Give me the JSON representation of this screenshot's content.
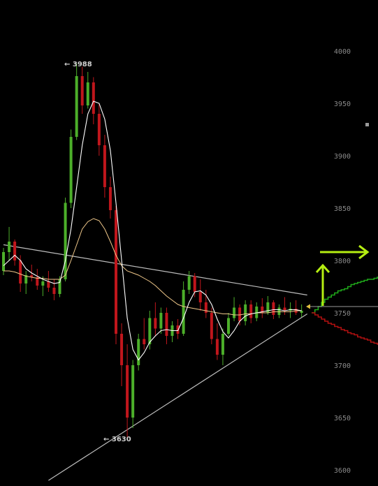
{
  "chart_data": {
    "type": "candlestick",
    "ylim": [
      3590,
      4010
    ],
    "y_ticks": [
      4000,
      3950,
      3900,
      3850,
      3800,
      3750,
      3700,
      3650,
      3600
    ],
    "grid": false,
    "legend": "none",
    "colors": {
      "up": "#4caf2a",
      "down": "#c0161c",
      "ma_fast": "#ffffff",
      "ma_slow": "#f0c88a",
      "trendline": "#bdbdbd",
      "bid_depth": "#1fa81a",
      "ask_depth": "#b01010",
      "arrow": "#b5ee12",
      "tick_text": "#8a8a8a"
    },
    "annotations": [
      {
        "label": "← 3988",
        "price": 3988
      },
      {
        "label": "← 3630",
        "price": 3630
      }
    ],
    "last_price": 3752,
    "candles": [
      [
        3790,
        3812,
        3786,
        3808
      ],
      [
        3808,
        3832,
        3800,
        3818
      ],
      [
        3818,
        3820,
        3795,
        3800
      ],
      [
        3800,
        3805,
        3770,
        3778
      ],
      [
        3778,
        3790,
        3768,
        3786
      ],
      [
        3786,
        3796,
        3780,
        3784
      ],
      [
        3784,
        3792,
        3772,
        3776
      ],
      [
        3776,
        3785,
        3766,
        3780
      ],
      [
        3780,
        3790,
        3770,
        3774
      ],
      [
        3774,
        3782,
        3762,
        3768
      ],
      [
        3768,
        3785,
        3765,
        3782
      ],
      [
        3782,
        3860,
        3780,
        3855
      ],
      [
        3855,
        3925,
        3850,
        3918
      ],
      [
        3918,
        3988,
        3915,
        3976
      ],
      [
        3976,
        3985,
        3940,
        3948
      ],
      [
        3948,
        3980,
        3945,
        3970
      ],
      [
        3970,
        3975,
        3930,
        3940
      ],
      [
        3940,
        3950,
        3900,
        3910
      ],
      [
        3910,
        3920,
        3860,
        3870
      ],
      [
        3870,
        3880,
        3840,
        3848
      ],
      [
        3848,
        3852,
        3720,
        3730
      ],
      [
        3730,
        3740,
        3680,
        3700
      ],
      [
        3700,
        3720,
        3630,
        3650
      ],
      [
        3650,
        3705,
        3640,
        3700
      ],
      [
        3700,
        3730,
        3695,
        3725
      ],
      [
        3725,
        3745,
        3715,
        3720
      ],
      [
        3720,
        3752,
        3715,
        3745
      ],
      [
        3745,
        3760,
        3728,
        3735
      ],
      [
        3735,
        3755,
        3730,
        3750
      ],
      [
        3750,
        3755,
        3720,
        3728
      ],
      [
        3728,
        3742,
        3722,
        3738
      ],
      [
        3738,
        3744,
        3725,
        3730
      ],
      [
        3730,
        3780,
        3728,
        3772
      ],
      [
        3772,
        3790,
        3768,
        3785
      ],
      [
        3785,
        3788,
        3765,
        3770
      ],
      [
        3770,
        3782,
        3752,
        3760
      ],
      [
        3760,
        3772,
        3745,
        3750
      ],
      [
        3750,
        3755,
        3720,
        3725
      ],
      [
        3725,
        3740,
        3705,
        3710
      ],
      [
        3710,
        3735,
        3700,
        3730
      ],
      [
        3730,
        3750,
        3728,
        3745
      ],
      [
        3745,
        3765,
        3742,
        3755
      ],
      [
        3755,
        3758,
        3738,
        3742
      ],
      [
        3742,
        3762,
        3738,
        3758
      ],
      [
        3758,
        3762,
        3740,
        3745
      ],
      [
        3745,
        3760,
        3742,
        3756
      ],
      [
        3756,
        3764,
        3745,
        3750
      ],
      [
        3750,
        3766,
        3748,
        3760
      ],
      [
        3760,
        3762,
        3744,
        3748
      ],
      [
        3748,
        3758,
        3745,
        3755
      ],
      [
        3755,
        3765,
        3748,
        3752
      ],
      [
        3752,
        3760,
        3745,
        3754
      ],
      [
        3754,
        3762,
        3748,
        3750
      ],
      [
        3750,
        3758,
        3746,
        3752
      ]
    ],
    "ma_fast": [
      3795,
      3800,
      3805,
      3800,
      3792,
      3788,
      3785,
      3782,
      3780,
      3778,
      3779,
      3800,
      3830,
      3870,
      3910,
      3940,
      3952,
      3950,
      3935,
      3905,
      3855,
      3800,
      3745,
      3715,
      3705,
      3712,
      3722,
      3728,
      3733,
      3734,
      3733,
      3733,
      3745,
      3760,
      3770,
      3771,
      3767,
      3758,
      3744,
      3732,
      3726,
      3733,
      3742,
      3747,
      3749,
      3750,
      3751,
      3752,
      3753,
      3753,
      3752,
      3753,
      3753,
      3752
    ],
    "ma_slow": [
      3790,
      3790,
      3789,
      3787,
      3785,
      3784,
      3783,
      3783,
      3782,
      3782,
      3782,
      3786,
      3800,
      3815,
      3830,
      3837,
      3840,
      3838,
      3830,
      3818,
      3805,
      3795,
      3790,
      3788,
      3786,
      3783,
      3780,
      3776,
      3771,
      3766,
      3762,
      3758,
      3756,
      3755,
      3754,
      3753,
      3752,
      3751,
      3750,
      3749,
      3749,
      3748,
      3748,
      3749,
      3749,
      3750,
      3750,
      3750,
      3751,
      3751,
      3751,
      3751,
      3752,
      3752
    ],
    "trendlines": [
      {
        "from": [
          0,
          3815
        ],
        "to": [
          54,
          3767
        ]
      },
      {
        "from": [
          8,
          3590
        ],
        "to": [
          54,
          3749
        ]
      }
    ],
    "depth": {
      "bid": [
        3750,
        3753,
        3756,
        3760,
        3763,
        3765,
        3767,
        3769,
        3771,
        3772,
        3773,
        3775,
        3777,
        3778,
        3779,
        3780,
        3781,
        3782,
        3782,
        3783,
        3784
      ],
      "ask": [
        3750,
        3748,
        3746,
        3744,
        3742,
        3740,
        3739,
        3737,
        3736,
        3734,
        3733,
        3731,
        3730,
        3729,
        3727,
        3726,
        3725,
        3724,
        3722,
        3721,
        3720
      ]
    }
  }
}
